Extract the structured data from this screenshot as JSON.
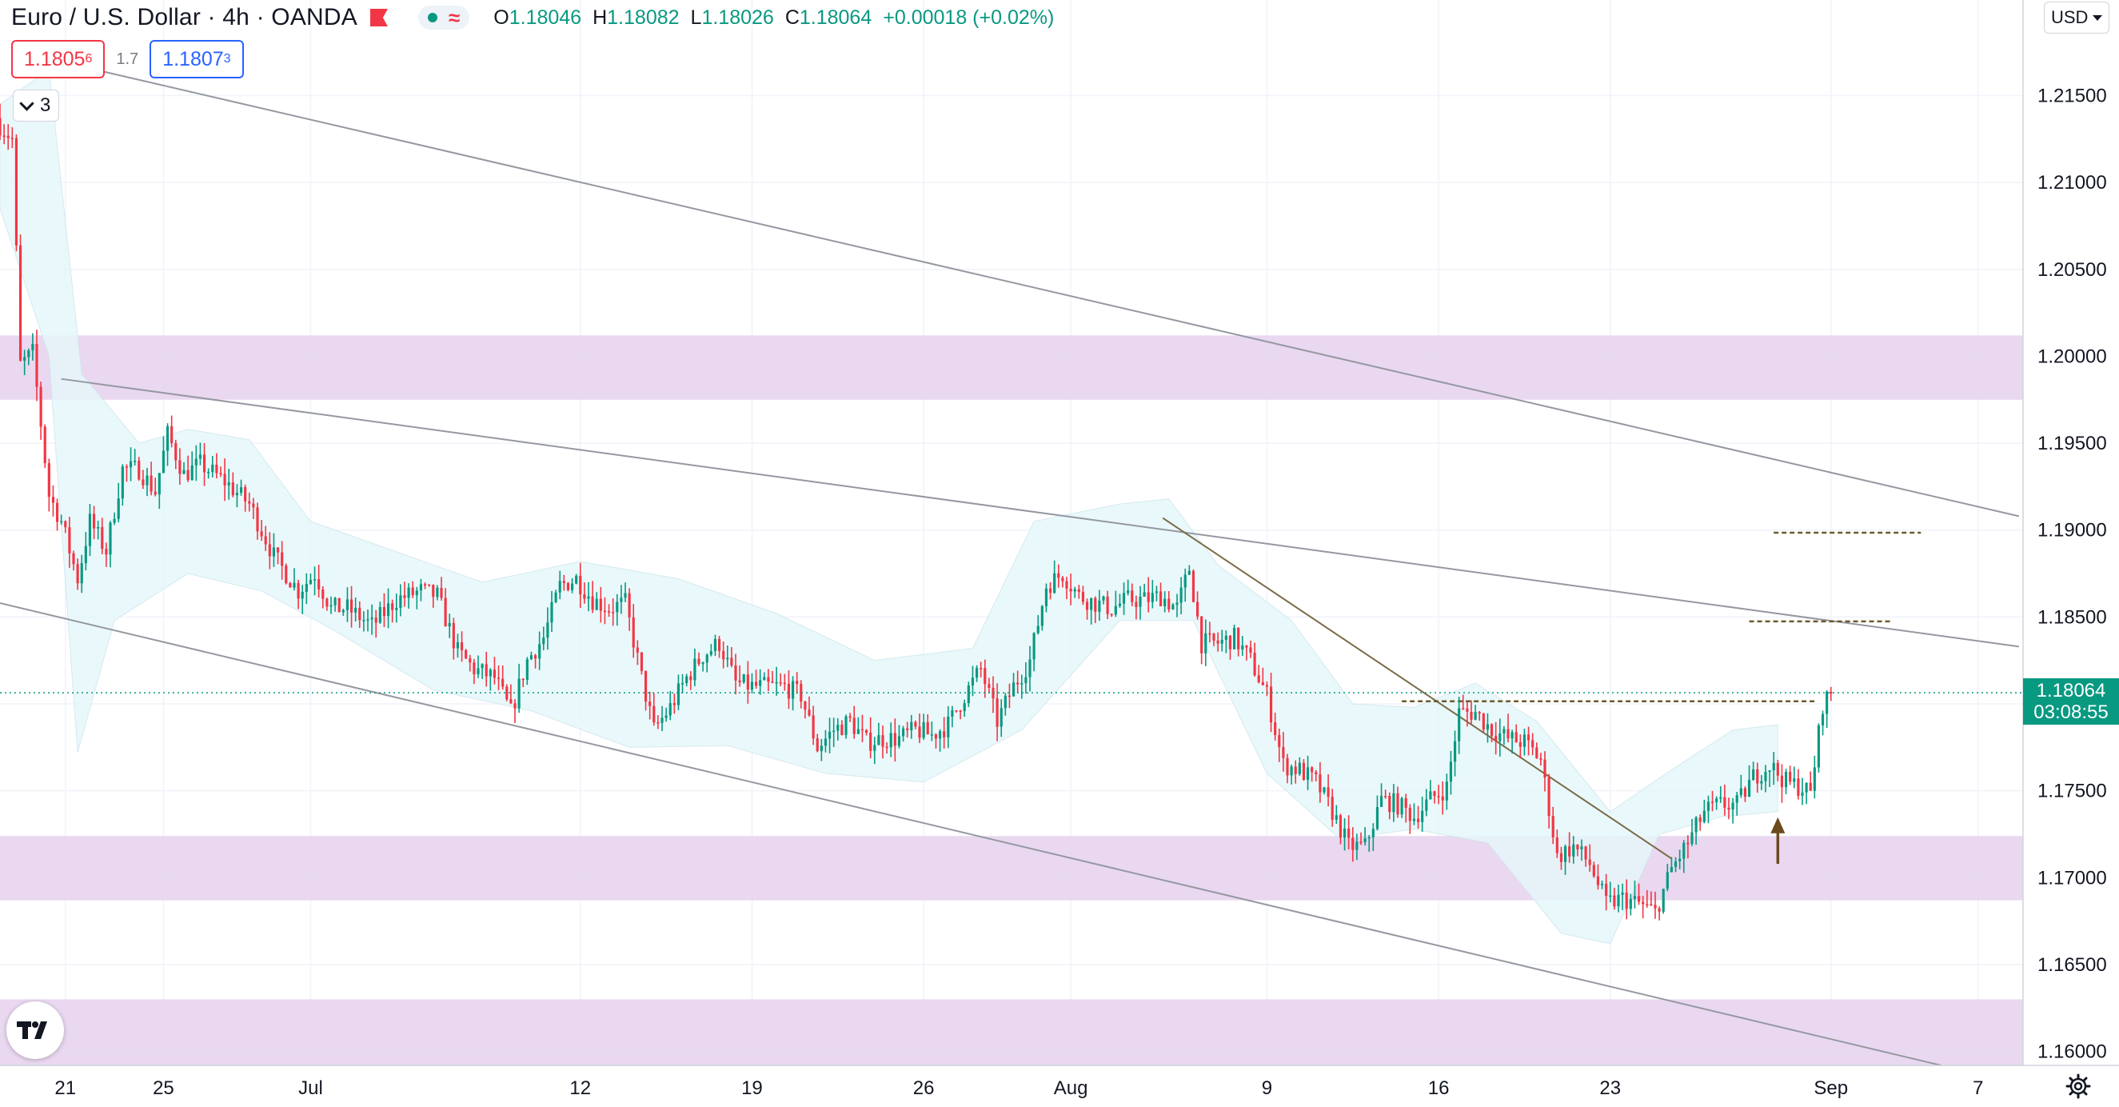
{
  "header": {
    "symbol_title": "Euro / U.S. Dollar · 4h · OANDA",
    "ohlc": {
      "o_label": "O",
      "o": "1.18046",
      "h_label": "H",
      "h": "1.18082",
      "l_label": "L",
      "l": "1.18026",
      "c_label": "C",
      "c": "1.18064",
      "change": "+0.00018 (+0.02%)"
    },
    "sell_price": "1.1805",
    "sell_price_sup": "6",
    "spread": "1.7",
    "buy_price": "1.1807",
    "buy_price_sup": "3",
    "indicator_count": "3",
    "currency": "USD",
    "axis_top_fragment": "1",
    "current_price": "1.18064",
    "countdown": "03:08:55"
  },
  "icons": {
    "flag": "flag-icon",
    "status_dot": "dot-icon",
    "wave": "wave-icon",
    "chevron": "chevron-down-icon",
    "caret": "caret-down-icon",
    "logo": "tradingview-logo-icon",
    "settings": "gear-icon"
  },
  "colors": {
    "up": "#089981",
    "down": "#f23645",
    "zone": "#e7d4ee",
    "bollinger": "#e6f7fa",
    "channel": "#9598a1",
    "trendline": "#7a6a46",
    "level": "#6b5a2a",
    "arrow": "#6b4a1e",
    "current_line": "#089981"
  },
  "chart_data": {
    "type": "candlestick",
    "instrument": "EURUSD",
    "timeframe": "4h",
    "y_axis": {
      "min": 1.1592,
      "max": 1.2205,
      "ticks": [
        "1.21500",
        "1.21000",
        "1.20500",
        "1.20000",
        "1.19500",
        "1.19000",
        "1.18500",
        "1.18000",
        "1.17500",
        "1.17000",
        "1.16500",
        "1.16000"
      ]
    },
    "x_axis": {
      "start": "2021-06-18 08:00",
      "end": "2021-09-08 20:00",
      "ticks": [
        {
          "date": "2021-06-21",
          "label": "21"
        },
        {
          "date": "2021-06-25",
          "label": "25"
        },
        {
          "date": "2021-07-01",
          "label": "Jul"
        },
        {
          "date": "2021-07-12",
          "label": "12"
        },
        {
          "date": "2021-07-19",
          "label": "19"
        },
        {
          "date": "2021-07-26",
          "label": "26"
        },
        {
          "date": "2021-08-01",
          "label": "Aug"
        },
        {
          "date": "2021-08-09",
          "label": "9"
        },
        {
          "date": "2021-08-16",
          "label": "16"
        },
        {
          "date": "2021-08-23",
          "label": "23"
        },
        {
          "date": "2021-09-01",
          "label": "Sep"
        },
        {
          "date": "2021-09-07",
          "label": "7"
        }
      ]
    },
    "grid": true,
    "current_price": 1.18064,
    "zones": [
      {
        "top": 1.2012,
        "bottom": 1.1975
      },
      {
        "top": 1.1724,
        "bottom": 1.1687
      },
      {
        "top": 1.163,
        "bottom": 1.1592
      }
    ],
    "channel_lines": [
      {
        "from": [
          "2021-06-19 18:00",
          1.2173
        ],
        "to": [
          "2021-09-08 16:00",
          1.1908
        ]
      },
      {
        "from": [
          "2021-06-20 20:00",
          1.1987
        ],
        "to": [
          "2021-09-08 16:00",
          1.1833
        ]
      },
      {
        "from": [
          "2021-06-18 08:00",
          1.1858
        ],
        "to": [
          "2021-09-05 12:00",
          1.1592
        ]
      }
    ],
    "trendline": {
      "from": [
        "2021-08-04 18:00",
        1.1907
      ],
      "to": [
        "2021-08-25 12:00",
        1.1711
      ]
    },
    "horizontal_levels": [
      {
        "price": 1.18985,
        "from": "2021-08-29 16:00",
        "to": "2021-09-04 16:00"
      },
      {
        "price": 1.18475,
        "from": "2021-08-28 16:00",
        "to": "2021-09-03 12:00"
      },
      {
        "price": 1.18015,
        "from": "2021-08-14 12:00",
        "to": "2021-08-31 08:00"
      }
    ],
    "arrow": {
      "time": "2021-08-29 20:00",
      "from": 1.1708,
      "to": 1.1732
    },
    "bollinger": {
      "upper": [
        [
          "2021-06-18 08:00",
          1.2145
        ],
        [
          "2021-06-20 08:00",
          1.2165
        ],
        [
          "2021-06-21 16:00",
          1.199
        ],
        [
          "2021-06-24 00:00",
          1.195
        ],
        [
          "2021-06-26 00:00",
          1.1958
        ],
        [
          "2021-06-28 12:00",
          1.1952
        ],
        [
          "2021-07-01 00:00",
          1.1905
        ],
        [
          "2021-07-05 00:00",
          1.1885
        ],
        [
          "2021-07-08 00:00",
          1.187
        ],
        [
          "2021-07-12 00:00",
          1.1882
        ],
        [
          "2021-07-16 00:00",
          1.1872
        ],
        [
          "2021-07-20 00:00",
          1.1852
        ],
        [
          "2021-07-24 00:00",
          1.1825
        ],
        [
          "2021-07-28 00:00",
          1.1832
        ],
        [
          "2021-07-30 12:00",
          1.1905
        ],
        [
          "2021-08-03 00:00",
          1.1915
        ],
        [
          "2021-08-05 00:00",
          1.1918
        ],
        [
          "2021-08-07 00:00",
          1.188
        ],
        [
          "2021-08-10 00:00",
          1.1848
        ],
        [
          "2021-08-12 12:00",
          1.18
        ],
        [
          "2021-08-15 00:00",
          1.1798
        ],
        [
          "2021-08-17 12:00",
          1.1812
        ],
        [
          "2021-08-20 00:00",
          1.179
        ],
        [
          "2021-08-23 00:00",
          1.1738
        ],
        [
          "2021-08-25 12:00",
          1.1762
        ],
        [
          "2021-08-28 00:00",
          1.1785
        ],
        [
          "2021-08-29 20:00",
          1.1788
        ]
      ],
      "lower": [
        [
          "2021-06-18 08:00",
          1.2085
        ],
        [
          "2021-06-20 08:00",
          1.2
        ],
        [
          "2021-06-21 12:00",
          1.1772
        ],
        [
          "2021-06-23 00:00",
          1.1848
        ],
        [
          "2021-06-26 00:00",
          1.1875
        ],
        [
          "2021-06-29 00:00",
          1.1865
        ],
        [
          "2021-07-02 00:00",
          1.1842
        ],
        [
          "2021-07-06 00:00",
          1.1808
        ],
        [
          "2021-07-10 00:00",
          1.1796
        ],
        [
          "2021-07-14 00:00",
          1.1775
        ],
        [
          "2021-07-18 00:00",
          1.1776
        ],
        [
          "2021-07-22 00:00",
          1.176
        ],
        [
          "2021-07-26 00:00",
          1.1755
        ],
        [
          "2021-07-30 00:00",
          1.1785
        ],
        [
          "2021-08-03 00:00",
          1.1848
        ],
        [
          "2021-08-06 00:00",
          1.1848
        ],
        [
          "2021-08-09 00:00",
          1.176
        ],
        [
          "2021-08-12 00:00",
          1.1722
        ],
        [
          "2021-08-15 00:00",
          1.1728
        ],
        [
          "2021-08-18 00:00",
          1.172
        ],
        [
          "2021-08-21 00:00",
          1.1668
        ],
        [
          "2021-08-23 00:00",
          1.1662
        ],
        [
          "2021-08-25 00:00",
          1.1725
        ],
        [
          "2021-08-27 12:00",
          1.1735
        ],
        [
          "2021-08-29 20:00",
          1.1738
        ]
      ]
    },
    "path_anchors": [
      [
        "2021-06-18 08:00",
        1.2133
      ],
      [
        "2021-06-18 20:00",
        1.2125
      ],
      [
        "2021-06-19 04:00",
        1.1995
      ],
      [
        "2021-06-19 16:00",
        1.2002
      ],
      [
        "2021-06-20 08:00",
        1.192
      ],
      [
        "2021-06-20 20:00",
        1.1905
      ],
      [
        "2021-06-21 12:00",
        1.1872
      ],
      [
        "2021-06-22 00:00",
        1.1905
      ],
      [
        "2021-06-22 16:00",
        1.1888
      ],
      [
        "2021-06-23 08:00",
        1.1935
      ],
      [
        "2021-06-24 00:00",
        1.1935
      ],
      [
        "2021-06-24 16:00",
        1.1922
      ],
      [
        "2021-06-25 04:00",
        1.1955
      ],
      [
        "2021-06-25 20:00",
        1.1932
      ],
      [
        "2021-06-26 12:00",
        1.1938
      ],
      [
        "2021-06-27 12:00",
        1.1928
      ],
      [
        "2021-06-28 12:00",
        1.1915
      ],
      [
        "2021-06-29 12:00",
        1.1885
      ],
      [
        "2021-06-30 12:00",
        1.1865
      ],
      [
        "2021-07-01 04:00",
        1.1875
      ],
      [
        "2021-07-01 20:00",
        1.1855
      ],
      [
        "2021-07-02 12:00",
        1.1855
      ],
      [
        "2021-07-03 12:00",
        1.1845
      ],
      [
        "2021-07-04 12:00",
        1.186
      ],
      [
        "2021-07-05 12:00",
        1.1865
      ],
      [
        "2021-07-06 04:00",
        1.1862
      ],
      [
        "2021-07-07 00:00",
        1.183
      ],
      [
        "2021-07-07 16:00",
        1.182
      ],
      [
        "2021-07-08 12:00",
        1.1815
      ],
      [
        "2021-07-09 04:00",
        1.1795
      ],
      [
        "2021-07-09 20:00",
        1.1825
      ],
      [
        "2021-07-10 12:00",
        1.1838
      ],
      [
        "2021-07-11 04:00",
        1.1868
      ],
      [
        "2021-07-11 20:00",
        1.1872
      ],
      [
        "2021-07-12 12:00",
        1.186
      ],
      [
        "2021-07-13 04:00",
        1.1855
      ],
      [
        "2021-07-13 20:00",
        1.1858
      ],
      [
        "2021-07-14 12:00",
        1.1815
      ],
      [
        "2021-07-15 00:00",
        1.1785
      ],
      [
        "2021-07-15 16:00",
        1.1798
      ],
      [
        "2021-07-16 08:00",
        1.1815
      ],
      [
        "2021-07-17 00:00",
        1.1828
      ],
      [
        "2021-07-17 16:00",
        1.1835
      ],
      [
        "2021-07-18 08:00",
        1.1812
      ],
      [
        "2021-07-19 00:00",
        1.181
      ],
      [
        "2021-07-19 16:00",
        1.181
      ],
      [
        "2021-07-20 08:00",
        1.181
      ],
      [
        "2021-07-21 00:00",
        1.1805
      ],
      [
        "2021-07-21 16:00",
        1.1775
      ],
      [
        "2021-07-22 08:00",
        1.1785
      ],
      [
        "2021-07-23 00:00",
        1.179
      ],
      [
        "2021-07-23 16:00",
        1.1778
      ],
      [
        "2021-07-24 08:00",
        1.178
      ],
      [
        "2021-07-25 00:00",
        1.178
      ],
      [
        "2021-07-25 16:00",
        1.1785
      ],
      [
        "2021-07-26 08:00",
        1.1782
      ],
      [
        "2021-07-27 00:00",
        1.1788
      ],
      [
        "2021-07-27 16:00",
        1.1805
      ],
      [
        "2021-07-28 08:00",
        1.182
      ],
      [
        "2021-07-29 00:00",
        1.179
      ],
      [
        "2021-07-29 16:00",
        1.181
      ],
      [
        "2021-07-30 08:00",
        1.1825
      ],
      [
        "2021-07-31 00:00",
        1.1868
      ],
      [
        "2021-07-31 16:00",
        1.1875
      ],
      [
        "2021-08-01 08:00",
        1.1862
      ],
      [
        "2021-08-02 00:00",
        1.1858
      ],
      [
        "2021-08-02 16:00",
        1.1855
      ],
      [
        "2021-08-03 08:00",
        1.186
      ],
      [
        "2021-08-04 00:00",
        1.186
      ],
      [
        "2021-08-04 16:00",
        1.1862
      ],
      [
        "2021-08-05 08:00",
        1.1855
      ],
      [
        "2021-08-05 20:00",
        1.1878
      ],
      [
        "2021-08-06 08:00",
        1.1835
      ],
      [
        "2021-08-07 00:00",
        1.1835
      ],
      [
        "2021-08-07 16:00",
        1.1838
      ],
      [
        "2021-08-08 08:00",
        1.1825
      ],
      [
        "2021-08-09 00:00",
        1.1805
      ],
      [
        "2021-08-09 16:00",
        1.1765
      ],
      [
        "2021-08-10 08:00",
        1.1762
      ],
      [
        "2021-08-11 00:00",
        1.1755
      ],
      [
        "2021-08-11 16:00",
        1.1738
      ],
      [
        "2021-08-12 08:00",
        1.1718
      ],
      [
        "2021-08-13 00:00",
        1.1718
      ],
      [
        "2021-08-13 16:00",
        1.1745
      ],
      [
        "2021-08-14 08:00",
        1.1742
      ],
      [
        "2021-08-15 00:00",
        1.1735
      ],
      [
        "2021-08-15 16:00",
        1.1745
      ],
      [
        "2021-08-16 08:00",
        1.1752
      ],
      [
        "2021-08-16 20:00",
        1.1795
      ],
      [
        "2021-08-17 12:00",
        1.1795
      ],
      [
        "2021-08-18 04:00",
        1.1785
      ],
      [
        "2021-08-18 20:00",
        1.178
      ],
      [
        "2021-08-19 12:00",
        1.1778
      ],
      [
        "2021-08-20 04:00",
        1.1768
      ],
      [
        "2021-08-20 20:00",
        1.1712
      ],
      [
        "2021-08-21 12:00",
        1.1718
      ],
      [
        "2021-08-22 04:00",
        1.1708
      ],
      [
        "2021-08-22 20:00",
        1.1685
      ],
      [
        "2021-08-23 12:00",
        1.1688
      ],
      [
        "2021-08-24 04:00",
        1.1685
      ],
      [
        "2021-08-24 20:00",
        1.168
      ],
      [
        "2021-08-25 12:00",
        1.1705
      ],
      [
        "2021-08-26 04:00",
        1.172
      ],
      [
        "2021-08-26 20:00",
        1.1738
      ],
      [
        "2021-08-27 12:00",
        1.1742
      ],
      [
        "2021-08-28 04:00",
        1.1742
      ],
      [
        "2021-08-28 20:00",
        1.1758
      ],
      [
        "2021-08-29 12:00",
        1.1765
      ],
      [
        "2021-08-30 04:00",
        1.1755
      ],
      [
        "2021-08-30 20:00",
        1.1752
      ],
      [
        "2021-08-31 04:00",
        1.1748
      ],
      [
        "2021-08-31 16:00",
        1.18
      ],
      [
        "2021-09-01 00:00",
        1.18064
      ]
    ]
  }
}
